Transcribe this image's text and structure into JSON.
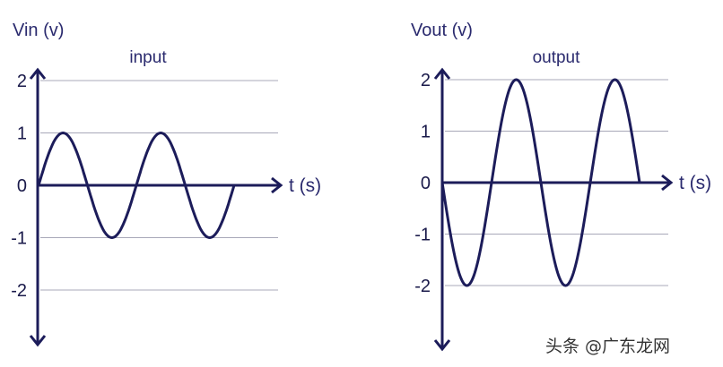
{
  "chart_data": [
    {
      "type": "line",
      "title": "input",
      "ylabel": "Vin (v)",
      "xlabel": "t (s)",
      "yticks": [
        "2",
        "1",
        "0",
        "-1",
        "-2"
      ],
      "ylim": [
        -2.5,
        2.5
      ],
      "grid": true,
      "series": [
        {
          "x": [
            0,
            0.25,
            0.5,
            0.75,
            1,
            1.25,
            1.5,
            1.75,
            2
          ],
          "y": [
            0,
            1,
            0,
            -1,
            0,
            1,
            0,
            -1,
            0
          ],
          "amplitude": 1,
          "cycles": 2,
          "phase_sign": 1
        }
      ]
    },
    {
      "type": "line",
      "title": "output",
      "ylabel": "Vout (v)",
      "xlabel": "t (s)",
      "yticks": [
        "2",
        "1",
        "0",
        "-1",
        "-2"
      ],
      "ylim": [
        -2.5,
        2.5
      ],
      "grid": true,
      "series": [
        {
          "x": [
            0,
            0.25,
            0.5,
            0.75,
            1,
            1.25,
            1.5,
            1.75,
            2
          ],
          "y": [
            0,
            -2,
            0,
            2,
            0,
            -2,
            0,
            2,
            0
          ],
          "amplitude": 2,
          "cycles": 2,
          "phase_sign": -1
        }
      ]
    }
  ],
  "colors": {
    "curve": "#1c1c5a",
    "grid": "#a8a8b8",
    "title": "#2a2a6e"
  },
  "watermark": "头条 @广东龙网"
}
